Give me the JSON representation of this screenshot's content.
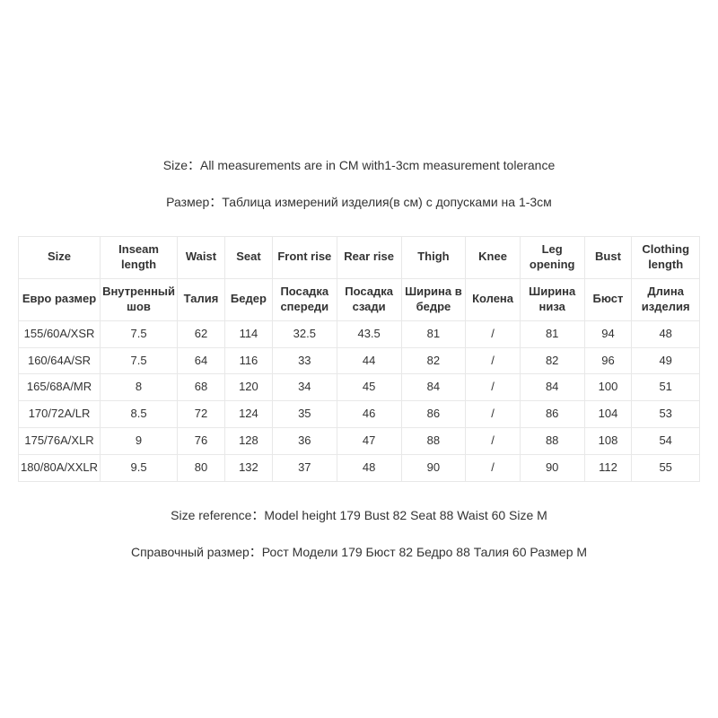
{
  "header": {
    "line1_en": "Size：All measurements are in CM with1-3cm measurement tolerance",
    "line2_ru": "Размер：Таблица измерений изделия(в см) с допусками на 1-3см"
  },
  "table": {
    "header_en": [
      "Size",
      "Inseam length",
      "Waist",
      "Seat",
      "Front rise",
      "Rear rise",
      "Thigh",
      "Knee",
      "Leg opening",
      "Bust",
      "Clothing length"
    ],
    "header_ru": [
      "Евро размер",
      "Внутренный шов",
      "Талия",
      "Бедер",
      "Посадка спереди",
      "Посадка сзади",
      "Ширина в бедре",
      "Колена",
      "Ширина низа",
      "Бюст",
      "Длина изделия"
    ],
    "rows": [
      [
        "155/60A/XSR",
        "7.5",
        "62",
        "114",
        "32.5",
        "43.5",
        "81",
        "/",
        "81",
        "94",
        "48"
      ],
      [
        "160/64A/SR",
        "7.5",
        "64",
        "116",
        "33",
        "44",
        "82",
        "/",
        "82",
        "96",
        "49"
      ],
      [
        "165/68A/MR",
        "8",
        "68",
        "120",
        "34",
        "45",
        "84",
        "/",
        "84",
        "100",
        "51"
      ],
      [
        "170/72A/LR",
        "8.5",
        "72",
        "124",
        "35",
        "46",
        "86",
        "/",
        "86",
        "104",
        "53"
      ],
      [
        "175/76A/XLR",
        "9",
        "76",
        "128",
        "36",
        "47",
        "88",
        "/",
        "88",
        "108",
        "54"
      ],
      [
        "180/80A/XXLR",
        "9.5",
        "80",
        "132",
        "37",
        "48",
        "90",
        "/",
        "90",
        "112",
        "55"
      ]
    ]
  },
  "footer": {
    "line1_en": "Size reference：Model  height 179  Bust 82  Seat 88  Waist 60  Size M",
    "line2_ru": "Справочный размер：Рост Модели 179 Бюст 82 Бедро 88 Талия 60 Размер M"
  },
  "styling": {
    "background_color": "#ffffff",
    "text_color": "#333333",
    "border_color": "#e8e8e8",
    "header_fontsize": 14,
    "table_fontsize": 13,
    "footer_fontsize": 14
  }
}
